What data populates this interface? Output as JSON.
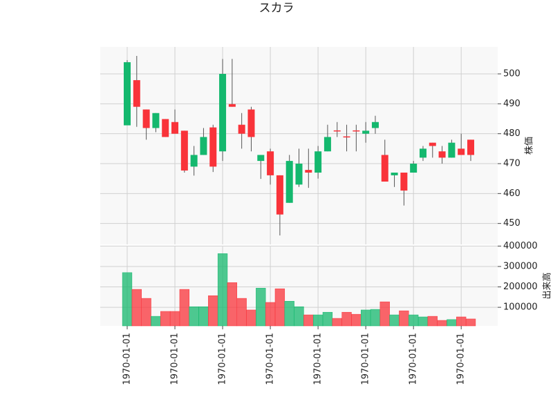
{
  "chart_data": {
    "type": "candlestick",
    "title": "スカラ",
    "categories": [
      "1970-01-01",
      null,
      null,
      null,
      null,
      "1970-01-01",
      null,
      null,
      null,
      null,
      "1970-01-01",
      null,
      null,
      null,
      null,
      "1970-01-01",
      null,
      null,
      null,
      null,
      "1970-01-01",
      null,
      null,
      null,
      null,
      "1970-01-01",
      null,
      null,
      null,
      null,
      "1970-01-01",
      null,
      null,
      null,
      null,
      "1970-01-01",
      null
    ],
    "open": [
      482.8,
      497.9,
      488.1,
      481.9,
      484.9,
      483.9,
      481.0,
      469.0,
      472.9,
      482.1,
      474.1,
      489.9,
      483.0,
      488.1,
      470.9,
      474.1,
      466.1,
      456.9,
      463.0,
      467.9,
      467.0,
      474.1,
      481.1,
      479.1,
      481.1,
      480.0,
      481.9,
      472.9,
      466.1,
      467.0,
      467.0,
      472.0,
      477.0,
      474.1,
      472.0,
      475.0,
      478.0
    ],
    "high": [
      504.6,
      506.0,
      488.1,
      486.9,
      484.9,
      488.1,
      481.0,
      475.9,
      481.9,
      483.0,
      505.0,
      505.0,
      486.9,
      489.0,
      472.9,
      475.0,
      466.1,
      472.9,
      475.0,
      475.0,
      475.9,
      483.0,
      483.9,
      483.0,
      483.0,
      483.9,
      486.0,
      478.0,
      467.0,
      467.0,
      470.9,
      475.9,
      477.0,
      475.9,
      478.0,
      480.0,
      478.0
    ],
    "low": [
      482.8,
      482.3,
      478.0,
      480.5,
      478.9,
      480.0,
      467.0,
      466.0,
      472.9,
      467.2,
      470.9,
      489.0,
      475.0,
      474.1,
      464.9,
      463.0,
      446.0,
      456.9,
      462.2,
      461.9,
      465.0,
      474.1,
      478.9,
      474.1,
      474.1,
      477.0,
      480.0,
      464.0,
      462.2,
      456.0,
      467.0,
      470.9,
      472.0,
      470.0,
      472.0,
      472.9,
      470.9
    ],
    "close": [
      503.9,
      489.0,
      481.9,
      486.9,
      478.9,
      480.0,
      467.7,
      472.9,
      478.9,
      469.0,
      500.0,
      489.0,
      480.0,
      478.9,
      472.9,
      466.1,
      453.0,
      470.9,
      470.0,
      467.0,
      474.1,
      478.9,
      480.9,
      478.9,
      480.9,
      481.0,
      483.9,
      464.0,
      467.0,
      461.0,
      470.0,
      475.0,
      475.9,
      472.0,
      477.0,
      472.9,
      472.9
    ],
    "volume": [
      270000,
      188000,
      144000,
      56000,
      80000,
      80000,
      188000,
      103000,
      103000,
      157000,
      363000,
      221000,
      144000,
      87000,
      194000,
      124000,
      191000,
      130000,
      103000,
      63000,
      63000,
      76000,
      46000,
      76000,
      66000,
      87000,
      90000,
      127000,
      63000,
      83000,
      63000,
      53000,
      56000,
      36000,
      40000,
      53000,
      43000
    ],
    "up_color": "#14b86e",
    "down_color": "#f9333a",
    "ylabel": "株価",
    "ylim": [
      443,
      509
    ],
    "yticks": [
      450,
      460,
      470,
      480,
      490,
      500
    ],
    "volume_label": "出来高",
    "volume_ylim": [
      9000,
      398000
    ],
    "volume_yticks": [
      100000,
      200000,
      300000,
      400000
    ],
    "grid": true
  }
}
